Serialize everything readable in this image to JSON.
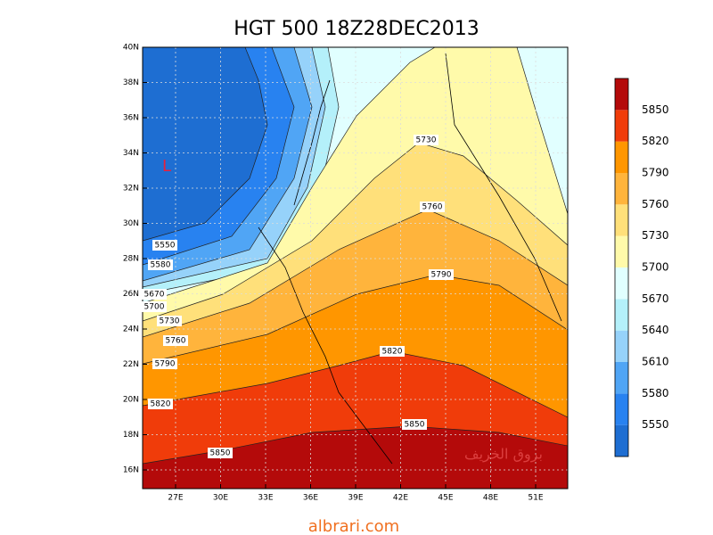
{
  "title": "HGT 500 18Z28DEC2013",
  "map": {
    "lat_labels": [
      "40N",
      "38N",
      "36N",
      "34N",
      "32N",
      "30N",
      "28N",
      "26N",
      "24N",
      "22N",
      "20N",
      "18N",
      "16N"
    ],
    "lon_labels": [
      "27E",
      "30E",
      "33E",
      "36E",
      "39E",
      "42E",
      "45E",
      "48E",
      "51E"
    ],
    "low_marker": "L",
    "contour_labels": [
      5550,
      5580,
      5670,
      5700,
      5730,
      5760,
      5790,
      5820,
      5850,
      5730,
      5760,
      5790,
      5820,
      5850
    ],
    "watermark": "بروق الخريف"
  },
  "colorbar": {
    "labels": [
      5550,
      5580,
      5610,
      5640,
      5670,
      5700,
      5730,
      5760,
      5790,
      5820,
      5850
    ],
    "colors": [
      "#1e6ed2",
      "#2882f0",
      "#50a5f5",
      "#96d2fa",
      "#b4f0fa",
      "#e1ffff",
      "#fffaaa",
      "#ffe07a",
      "#ffb43c",
      "#ff9600",
      "#f03c0a",
      "#b40a0a"
    ]
  },
  "footer": "albrari.com"
}
